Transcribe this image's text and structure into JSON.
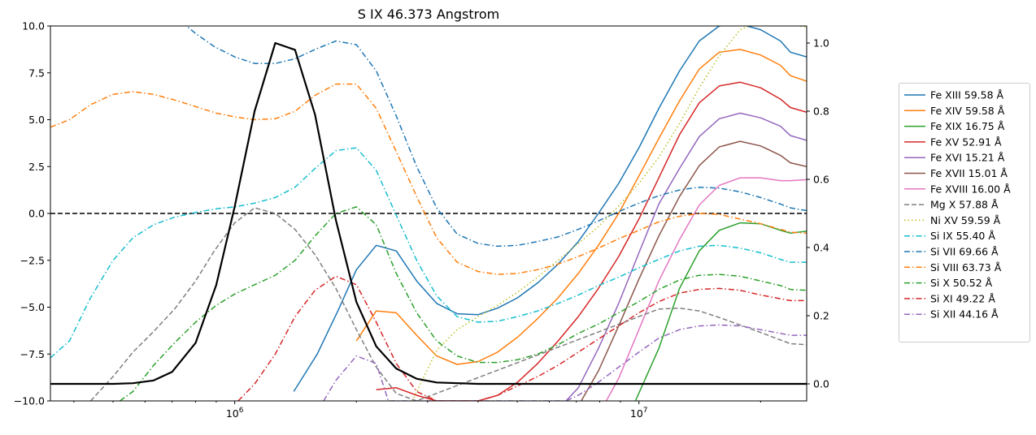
{
  "chart_data": {
    "type": "line",
    "title": "S IX 46.373 Angstrom",
    "xscale": "log",
    "xlim": [
      350000,
      26000000
    ],
    "ylim": [
      -10,
      10
    ],
    "y2lim": [
      -0.05,
      1.05
    ],
    "x_ticks": [
      {
        "value": 1000000,
        "label": "10^6"
      },
      {
        "value": 10000000,
        "label": "10^7"
      }
    ],
    "y_ticks": [
      -10.0,
      -7.5,
      -5.0,
      -2.5,
      0.0,
      2.5,
      5.0,
      7.5,
      10.0
    ],
    "y_tick_labels": [
      "−10.0",
      "−7.5",
      "−5.0",
      "−2.5",
      "0.0",
      "2.5",
      "5.0",
      "7.5",
      "10.0"
    ],
    "y2_ticks": [
      0.0,
      0.2,
      0.4,
      0.6,
      0.8,
      1.0
    ],
    "y2_tick_labels": [
      "0.0",
      "0.2",
      "0.4",
      "0.6",
      "0.8",
      "1.0"
    ],
    "hline": {
      "y": 0,
      "style": "dashed",
      "color": "#000000"
    },
    "legend_position": "right",
    "primary": {
      "name": "",
      "color": "#000000",
      "axis": "right",
      "x": [
        350000,
        500000,
        560000,
        630000,
        700000,
        800000,
        900000,
        1000000,
        1120000,
        1260000,
        1410000,
        1580000,
        1780000,
        2000000,
        2240000,
        2510000,
        2820000,
        3160000,
        4000000,
        6000000,
        10000000,
        20000000,
        26000000
      ],
      "y": [
        0.0,
        0.0,
        0.002,
        0.01,
        0.035,
        0.12,
        0.29,
        0.52,
        0.8,
        1.0,
        0.98,
        0.79,
        0.48,
        0.24,
        0.11,
        0.045,
        0.015,
        0.004,
        0.0,
        0.0,
        0.0,
        0.0,
        0.0
      ]
    },
    "series": [
      {
        "name": "Fe XIII 59.58 Å",
        "color": "#1f77b4",
        "dash": "solid",
        "x": [
          1400000,
          1600000,
          1800000,
          2000000,
          2240000,
          2510000,
          2820000,
          3160000,
          3550000,
          4000000,
          4470000,
          5010000,
          5620000,
          6310000,
          7080000,
          7940000,
          8910000,
          10000000,
          11200000,
          12600000,
          14100000,
          15800000,
          17800000,
          20000000,
          22400000,
          23700000,
          26000000
        ],
        "y": [
          -9.5,
          -7.5,
          -5.2,
          -3.0,
          -1.7,
          -2.0,
          -3.6,
          -4.8,
          -5.35,
          -5.4,
          -5.05,
          -4.5,
          -3.7,
          -2.7,
          -1.5,
          0.0,
          1.6,
          3.5,
          5.6,
          7.6,
          9.2,
          10.0,
          10.1,
          9.8,
          9.2,
          8.6,
          8.35
        ]
      },
      {
        "name": "Fe XIV 59.58 Å",
        "color": "#ff7f0e",
        "dash": "solid",
        "x": [
          2000000,
          2240000,
          2510000,
          2820000,
          3160000,
          3550000,
          4000000,
          4470000,
          5010000,
          5620000,
          6310000,
          7080000,
          7940000,
          8910000,
          10000000,
          11200000,
          12600000,
          14100000,
          15800000,
          17800000,
          20000000,
          22400000,
          23700000,
          26000000
        ],
        "y": [
          -6.8,
          -5.2,
          -5.3,
          -6.5,
          -7.6,
          -8.05,
          -7.9,
          -7.4,
          -6.6,
          -5.6,
          -4.5,
          -3.2,
          -1.7,
          0.0,
          2.0,
          4.0,
          6.0,
          7.7,
          8.6,
          8.75,
          8.45,
          7.9,
          7.35,
          7.05
        ]
      },
      {
        "name": "Fe XIX 16.75 Å",
        "color": "#2ca02c",
        "dash": "solid",
        "x": [
          9800000,
          11200000,
          12600000,
          14100000,
          15800000,
          17800000,
          20000000,
          22400000,
          23700000,
          26000000
        ],
        "y": [
          -10.0,
          -7.2,
          -4.0,
          -2.0,
          -0.9,
          -0.5,
          -0.55,
          -0.9,
          -1.05,
          -0.95
        ]
      },
      {
        "name": "Fe XV 52.91 Å",
        "color": "#d62728",
        "dash": "solid",
        "x": [
          2240000,
          2510000,
          2820000,
          3160000,
          3550000,
          4000000,
          4470000,
          5010000,
          5620000,
          6310000,
          7080000,
          7940000,
          8910000,
          10000000,
          11200000,
          12600000,
          14100000,
          15800000,
          17800000,
          20000000,
          22400000,
          23700000,
          26000000
        ],
        "y": [
          -9.4,
          -9.3,
          -9.7,
          -10.0,
          -10.0,
          -10.0,
          -9.7,
          -9.0,
          -8.0,
          -6.8,
          -5.5,
          -4.0,
          -2.3,
          -0.3,
          1.9,
          4.2,
          5.9,
          6.8,
          7.0,
          6.7,
          6.1,
          5.65,
          5.4
        ]
      },
      {
        "name": "Fe XVI 15.21 Å",
        "color": "#9467bd",
        "dash": "solid",
        "x": [
          6600000,
          7080000,
          7940000,
          8910000,
          10000000,
          11200000,
          12600000,
          14100000,
          15800000,
          17800000,
          20000000,
          22400000,
          23700000,
          26000000
        ],
        "y": [
          -10.0,
          -9.3,
          -7.2,
          -4.8,
          -2.1,
          0.5,
          2.4,
          4.1,
          5.05,
          5.35,
          5.1,
          4.65,
          4.15,
          3.9
        ]
      },
      {
        "name": "Fe XVII 15.01 Å",
        "color": "#8c564b",
        "dash": "solid",
        "x": [
          7200000,
          7940000,
          8910000,
          10000000,
          11200000,
          12600000,
          14100000,
          15800000,
          17800000,
          20000000,
          22400000,
          23700000,
          26000000
        ],
        "y": [
          -10.0,
          -8.4,
          -6.0,
          -3.5,
          -1.2,
          0.9,
          2.55,
          3.55,
          3.85,
          3.6,
          3.1,
          2.7,
          2.5
        ]
      },
      {
        "name": "Fe XVIII 16.00 Å",
        "color": "#e377c2",
        "dash": "solid",
        "x": [
          8300000,
          8910000,
          10000000,
          11200000,
          12600000,
          14100000,
          15800000,
          17800000,
          20000000,
          22400000,
          23700000,
          26000000
        ],
        "y": [
          -10.0,
          -8.8,
          -6.2,
          -3.6,
          -1.4,
          0.45,
          1.5,
          1.9,
          1.9,
          1.75,
          1.75,
          1.8
        ]
      },
      {
        "name": "Mg X 57.88 Å",
        "color": "#7f7f7f",
        "dash": "dashed",
        "x": [
          440000,
          500000,
          560000,
          630000,
          710000,
          800000,
          890000,
          1000000,
          1120000,
          1260000,
          1410000,
          1580000,
          1780000,
          2000000,
          2240000,
          2510000,
          2820000,
          10000000,
          11200000,
          12600000,
          14100000,
          15800000,
          17800000,
          20000000,
          22400000,
          23700000,
          26000000
        ],
        "y": [
          -10.0,
          -8.7,
          -7.4,
          -6.3,
          -5.1,
          -3.6,
          -2.0,
          -0.5,
          0.3,
          0.0,
          -0.85,
          -2.2,
          -4.0,
          -6.2,
          -8.2,
          -9.6,
          -10.0,
          -5.5,
          -5.1,
          -5.05,
          -5.2,
          -5.55,
          -5.95,
          -6.35,
          -6.75,
          -6.95,
          -7.0
        ]
      },
      {
        "name": "Ni XV 59.59 Å",
        "color": "#bcbd22",
        "dash": "dotted",
        "x": [
          2750000,
          3160000,
          3550000,
          4000000,
          4470000,
          5010000,
          5620000,
          6310000,
          7080000,
          7940000,
          8910000,
          10000000,
          11200000,
          12600000,
          14100000,
          15800000,
          17800000,
          20000000,
          22400000,
          23700000,
          26000000
        ],
        "y": [
          -10.0,
          -7.3,
          -6.2,
          -5.5,
          -4.9,
          -4.2,
          -3.4,
          -2.5,
          -1.6,
          -0.7,
          0.4,
          1.6,
          3.0,
          4.8,
          6.7,
          8.4,
          9.8,
          10.25,
          10.2,
          10.05,
          9.95
        ]
      },
      {
        "name": "Si IX 55.40 Å",
        "color": "#17becf",
        "dash": "dashdot",
        "x": [
          350000,
          390000,
          440000,
          500000,
          560000,
          630000,
          710000,
          800000,
          900000,
          1000000,
          1120000,
          1260000,
          1410000,
          1580000,
          1780000,
          2000000,
          2240000,
          2510000,
          2820000,
          3160000,
          3550000,
          4000000,
          4470000,
          5010000,
          5620000,
          6310000,
          7080000,
          7940000,
          8910000,
          10000000,
          11200000,
          12600000,
          14100000,
          15800000,
          17800000,
          20000000,
          22400000,
          23700000,
          26000000
        ],
        "y": [
          -7.7,
          -6.8,
          -4.5,
          -2.5,
          -1.3,
          -0.6,
          -0.2,
          0.05,
          0.25,
          0.35,
          0.55,
          0.85,
          1.4,
          2.4,
          3.35,
          3.5,
          2.3,
          -0.1,
          -2.5,
          -4.4,
          -5.5,
          -5.8,
          -5.75,
          -5.5,
          -5.2,
          -4.8,
          -4.35,
          -3.85,
          -3.4,
          -2.9,
          -2.45,
          -2.0,
          -1.75,
          -1.7,
          -1.85,
          -2.1,
          -2.45,
          -2.6,
          -2.6
        ]
      },
      {
        "name": "Si VII 69.66 Å",
        "color": "#1f77b4",
        "dash": "dashdot",
        "x": [
          740000,
          800000,
          890000,
          1000000,
          1120000,
          1260000,
          1410000,
          1580000,
          1780000,
          2000000,
          2240000,
          2510000,
          2820000,
          3160000,
          3550000,
          4000000,
          4470000,
          5010000,
          5620000,
          6310000,
          7080000,
          7940000,
          8910000,
          10000000,
          11200000,
          12600000,
          14100000,
          15800000,
          17800000,
          20000000,
          22400000,
          23700000,
          26000000
        ],
        "y": [
          10.2,
          9.6,
          8.9,
          8.35,
          8.0,
          8.0,
          8.25,
          8.75,
          9.2,
          9.0,
          7.6,
          5.2,
          2.5,
          0.3,
          -1.1,
          -1.6,
          -1.75,
          -1.7,
          -1.5,
          -1.25,
          -0.85,
          -0.4,
          0.1,
          0.55,
          0.95,
          1.25,
          1.4,
          1.35,
          1.15,
          0.85,
          0.5,
          0.3,
          0.15
        ]
      },
      {
        "name": "Si VIII 63.73 Å",
        "color": "#ff7f0e",
        "dash": "dashdot",
        "x": [
          350000,
          390000,
          440000,
          500000,
          560000,
          630000,
          710000,
          800000,
          900000,
          1000000,
          1120000,
          1260000,
          1410000,
          1580000,
          1780000,
          2000000,
          2240000,
          2510000,
          2820000,
          3160000,
          3550000,
          4000000,
          4470000,
          5010000,
          5620000,
          6310000,
          7080000,
          7940000,
          8910000,
          10000000,
          11200000,
          12600000,
          14100000,
          15800000,
          17800000,
          20000000,
          22400000,
          23700000,
          26000000
        ],
        "y": [
          4.6,
          5.0,
          5.8,
          6.35,
          6.5,
          6.35,
          6.05,
          5.7,
          5.35,
          5.15,
          5.0,
          5.05,
          5.45,
          6.3,
          6.9,
          6.9,
          5.6,
          3.3,
          0.9,
          -1.3,
          -2.6,
          -3.1,
          -3.25,
          -3.2,
          -3.0,
          -2.7,
          -2.3,
          -1.85,
          -1.35,
          -0.9,
          -0.45,
          -0.15,
          0.0,
          -0.05,
          -0.3,
          -0.55,
          -0.85,
          -1.0,
          -1.05
        ]
      },
      {
        "name": "Si X 50.52 Å",
        "color": "#2ca02c",
        "dash": "dashdot",
        "x": [
          520000,
          560000,
          630000,
          710000,
          800000,
          900000,
          1000000,
          1120000,
          1260000,
          1410000,
          1580000,
          1780000,
          2000000,
          2240000,
          2510000,
          2820000,
          3160000,
          3550000,
          4000000,
          4470000,
          5010000,
          5620000,
          6310000,
          7080000,
          7940000,
          8910000,
          10000000,
          11200000,
          12600000,
          14100000,
          15800000,
          17800000,
          20000000,
          22400000,
          23700000,
          26000000
        ],
        "y": [
          -10.0,
          -9.5,
          -8.1,
          -6.9,
          -5.8,
          -4.9,
          -4.3,
          -3.8,
          -3.3,
          -2.5,
          -1.2,
          0.0,
          0.35,
          -0.6,
          -3.2,
          -5.3,
          -6.8,
          -7.6,
          -7.95,
          -7.95,
          -7.8,
          -7.5,
          -7.0,
          -6.4,
          -5.9,
          -5.3,
          -4.7,
          -4.05,
          -3.55,
          -3.3,
          -3.25,
          -3.35,
          -3.6,
          -3.85,
          -4.05,
          -4.1
        ]
      },
      {
        "name": "Si XI 49.22 Å",
        "color": "#d62728",
        "dash": "dashdot",
        "x": [
          1020000,
          1120000,
          1260000,
          1410000,
          1580000,
          1780000,
          2000000,
          2240000,
          2510000,
          2820000,
          3160000,
          3550000,
          4000000,
          4470000,
          5010000,
          5620000,
          6310000,
          7080000,
          7940000,
          8910000,
          10000000,
          11200000,
          12600000,
          14100000,
          15800000,
          17800000,
          20000000,
          22400000,
          23700000,
          26000000
        ],
        "y": [
          -10.0,
          -9.1,
          -7.5,
          -5.5,
          -4.1,
          -3.35,
          -3.8,
          -5.8,
          -8.0,
          -9.5,
          -10.0,
          -10.0,
          -10.0,
          -9.7,
          -9.2,
          -8.7,
          -8.1,
          -7.4,
          -6.7,
          -6.0,
          -5.3,
          -4.7,
          -4.25,
          -4.05,
          -4.0,
          -4.1,
          -4.35,
          -4.55,
          -4.65,
          -4.65
        ]
      },
      {
        "name": "Si XII 44.16 Å",
        "color": "#9467bd",
        "dash": "dashdot",
        "x": [
          1660000,
          1780000,
          2000000,
          2240000,
          2400000,
          6600000,
          7080000,
          7940000,
          8910000,
          10000000,
          11200000,
          12600000,
          14100000,
          15800000,
          17800000,
          20000000,
          22400000,
          23700000,
          26000000
        ],
        "y": [
          -10.0,
          -8.9,
          -7.6,
          -8.0,
          -10.0,
          -10.0,
          -9.7,
          -9.0,
          -8.2,
          -7.4,
          -6.65,
          -6.2,
          -6.0,
          -5.95,
          -6.0,
          -6.2,
          -6.4,
          -6.5,
          -6.5
        ]
      }
    ]
  }
}
